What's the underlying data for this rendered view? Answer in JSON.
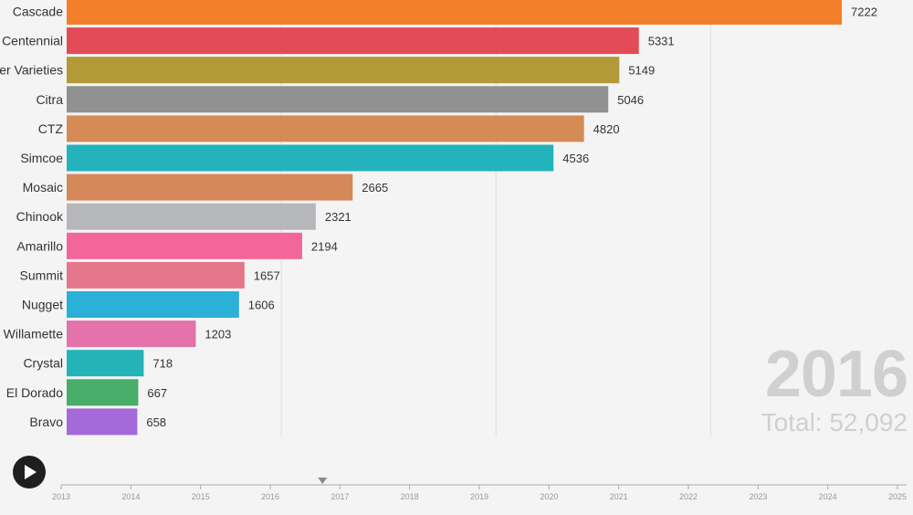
{
  "chart_data": {
    "type": "bar",
    "orientation": "horizontal",
    "categories": [
      "Cascade",
      "Centennial",
      "Other Varieties",
      "Citra",
      "CTZ",
      "Simcoe",
      "Mosaic",
      "Chinook",
      "Amarillo",
      "Summit",
      "Nugget",
      "Willamette",
      "Crystal",
      "El Dorado",
      "Bravo"
    ],
    "values": [
      7222,
      5331,
      5149,
      5046,
      4820,
      4536,
      2665,
      2321,
      2194,
      1657,
      1606,
      1203,
      718,
      667,
      658
    ],
    "colors": [
      "#f47f2a",
      "#e34b56",
      "#b19a37",
      "#919191",
      "#d58b55",
      "#24b3bd",
      "#d5895b",
      "#b5b7ba",
      "#f2669a",
      "#e5778b",
      "#2bb0d7",
      "#e373aa",
      "#24b3b7",
      "#47ad68",
      "#a46ad9"
    ],
    "xlim": [
      0,
      7800
    ],
    "grid": true,
    "year": "2016",
    "total_label": "Total: 52,092"
  },
  "timeline": {
    "years": [
      "2013",
      "2014",
      "2015",
      "2016",
      "2017",
      "2018",
      "2019",
      "2020",
      "2021",
      "2022",
      "2023",
      "2024",
      "2025"
    ],
    "current_position": 2016.75
  },
  "controls": {
    "play_icon": "play-icon"
  }
}
